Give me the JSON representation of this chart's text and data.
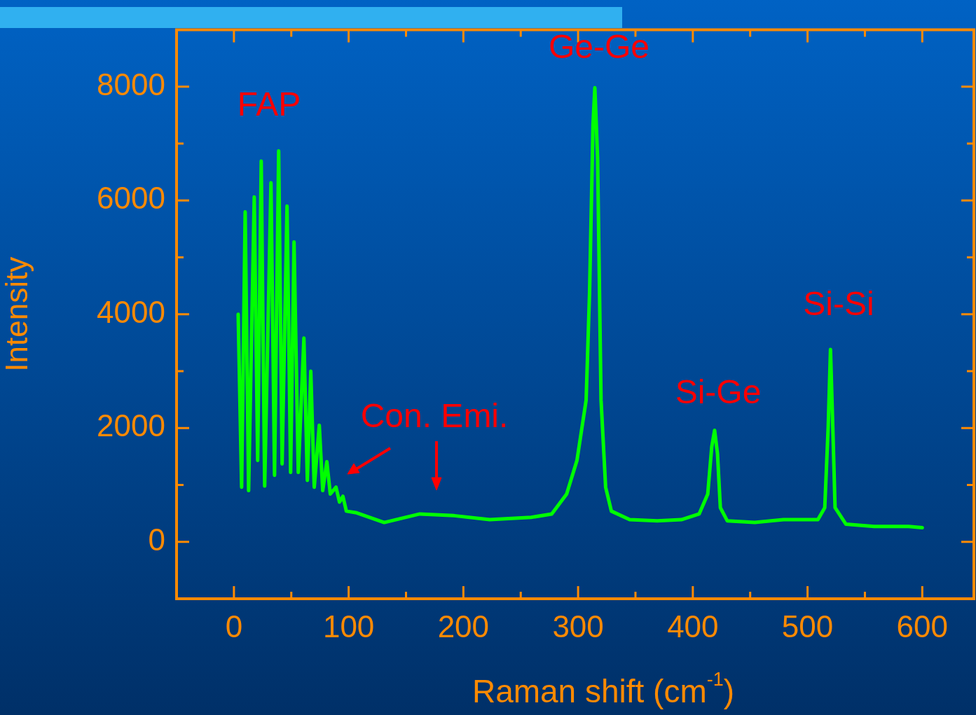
{
  "chart_data": {
    "type": "line",
    "xlabel": "Raman shift (cm$^{-1}$)",
    "ylabel": "Intensity",
    "x": [
      3.7,
      6.7,
      9.8,
      12.8,
      17.7,
      20.7,
      23.8,
      26.8,
      32.3,
      35.4,
      39,
      42,
      46.3,
      49.4,
      52.4,
      56.1,
      61,
      64,
      67,
      70,
      74.4,
      77.4,
      81,
      84,
      89,
      92,
      95,
      98,
      107,
      131,
      162,
      192,
      223,
      259,
      277,
      290,
      299,
      307,
      310,
      313,
      314.6,
      317,
      320,
      324,
      329,
      345,
      369,
      390,
      405.5,
      413,
      416.5,
      419,
      421.5,
      424,
      430,
      454,
      479,
      509,
      515,
      518,
      520,
      522,
      524,
      533.5,
      558,
      588,
      600
    ],
    "series": [
      {
        "color": "#00ff00",
        "values": [
          4000,
          960,
          5800,
          900,
          6060,
          1430,
          6690,
          980,
          6310,
          1170,
          6870,
          1370,
          5900,
          1220,
          5270,
          1220,
          3580,
          1080,
          3000,
          960,
          2050,
          900,
          1410,
          840,
          960,
          700,
          800,
          540,
          510,
          340,
          490,
          460,
          390,
          430,
          490,
          840,
          1430,
          2490,
          4390,
          7340,
          7980,
          6750,
          2490,
          960,
          540,
          390,
          370,
          390,
          490,
          840,
          1670,
          1960,
          1550,
          600,
          370,
          340,
          390,
          390,
          600,
          2020,
          3380,
          2020,
          600,
          310,
          270,
          270,
          250
        ]
      }
    ],
    "xlim": [
      -50,
      645
    ],
    "ylim": [
      -1000,
      9000
    ],
    "xticks": [
      0,
      {
        "value": 50,
        "label": null
      },
      100,
      {
        "value": 150,
        "label": null
      },
      200,
      {
        "value": 250,
        "label": null
      },
      300,
      {
        "value": 350,
        "label": null
      },
      400,
      {
        "value": 450,
        "label": null
      },
      500,
      {
        "value": 550,
        "label": null
      },
      600
    ],
    "yticks": [
      0,
      {
        "value": 1000,
        "label": null
      },
      2000,
      {
        "value": 3000,
        "label": null
      },
      4000,
      {
        "value": 5000,
        "label": null
      },
      6000,
      {
        "value": 7000,
        "label": null
      },
      8000
    ],
    "grid": false,
    "legend": false,
    "marker": "none",
    "line_style": "solid",
    "annotations": [
      "FAP",
      "Ge-Ge",
      "Si-Ge",
      "Si-Si",
      "Con. Emi."
    ]
  }
}
